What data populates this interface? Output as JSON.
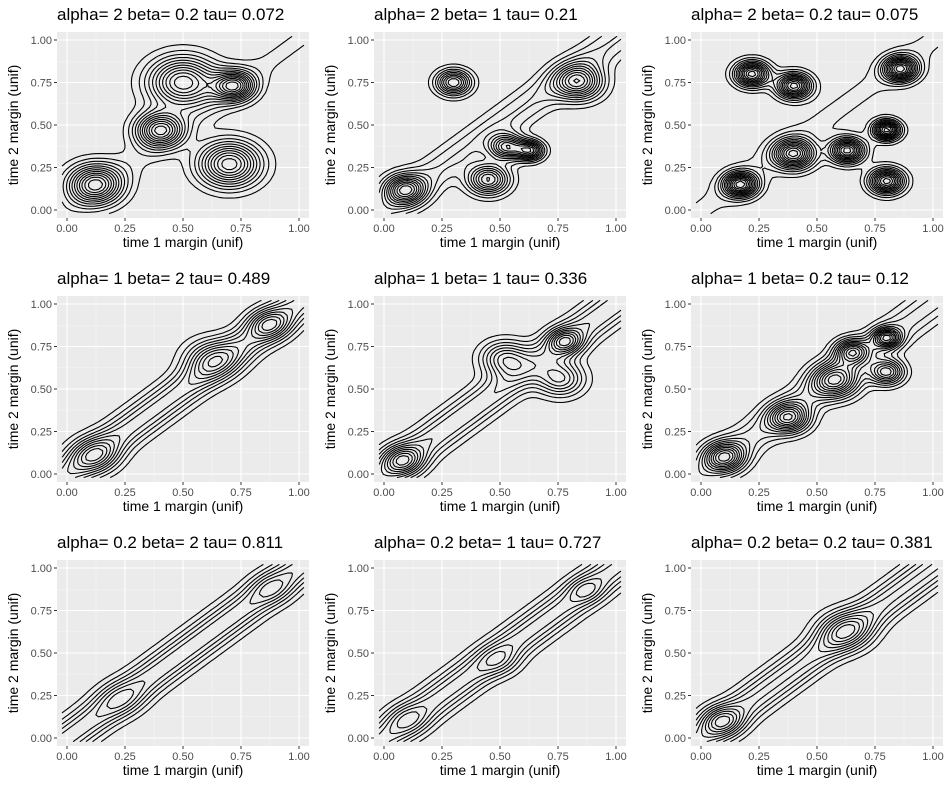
{
  "chart_data": [
    {
      "type": "contour",
      "title": "alpha= 2  beta= 0.2  tau= 0.072",
      "xlabel": "time 1 margin (unif)",
      "ylabel": "time 2 margin (unif)",
      "xlim": [
        0,
        1
      ],
      "ylim": [
        0,
        1
      ],
      "x_ticks": [
        "0.00",
        "0.25",
        "0.50",
        "0.75",
        "1.00"
      ],
      "y_ticks": [
        "0.00",
        "0.25",
        "0.50",
        "0.75",
        "1.00"
      ],
      "border_levels": 10,
      "ridge": 0.1,
      "peaks": [
        {
          "x": 0.12,
          "y": 0.15,
          "w": 0.08
        },
        {
          "x": 0.4,
          "y": 0.47,
          "w": 0.07
        },
        {
          "x": 0.7,
          "y": 0.27,
          "w": 0.09
        },
        {
          "x": 0.72,
          "y": 0.73,
          "w": 0.06
        },
        {
          "x": 0.5,
          "y": 0.75,
          "w": 0.1
        }
      ]
    },
    {
      "type": "contour",
      "title": "alpha= 2  beta= 1  tau= 0.21",
      "xlabel": "time 1 margin (unif)",
      "ylabel": "time 2 margin (unif)",
      "xlim": [
        0,
        1
      ],
      "ylim": [
        0,
        1
      ],
      "x_ticks": [
        "0.00",
        "0.25",
        "0.50",
        "0.75",
        "1.00"
      ],
      "y_ticks": [
        "0.00",
        "0.25",
        "0.50",
        "0.75",
        "1.00"
      ],
      "border_levels": 9,
      "ridge": 0.3,
      "peaks": [
        {
          "x": 0.09,
          "y": 0.12,
          "w": 0.06
        },
        {
          "x": 0.45,
          "y": 0.18,
          "w": 0.06
        },
        {
          "x": 0.53,
          "y": 0.37,
          "w": 0.05
        },
        {
          "x": 0.84,
          "y": 0.75,
          "w": 0.07
        },
        {
          "x": 0.3,
          "y": 0.75,
          "w": 0.05
        },
        {
          "x": 0.63,
          "y": 0.35,
          "w": 0.04
        }
      ]
    },
    {
      "type": "contour",
      "title": "alpha= 2  beta= 0.2  tau= 0.075",
      "xlabel": "time 1 margin (unif)",
      "ylabel": "time 2 margin (unif)",
      "xlim": [
        0,
        1
      ],
      "ylim": [
        0,
        1
      ],
      "x_ticks": [
        "0.00",
        "0.25",
        "0.50",
        "0.75",
        "1.00"
      ],
      "y_ticks": [
        "0.00",
        "0.25",
        "0.50",
        "0.75",
        "1.00"
      ],
      "border_levels": 10,
      "ridge": 0.1,
      "peaks": [
        {
          "x": 0.17,
          "y": 0.15,
          "w": 0.05
        },
        {
          "x": 0.4,
          "y": 0.33,
          "w": 0.06
        },
        {
          "x": 0.4,
          "y": 0.73,
          "w": 0.05
        },
        {
          "x": 0.63,
          "y": 0.35,
          "w": 0.05
        },
        {
          "x": 0.86,
          "y": 0.83,
          "w": 0.05
        },
        {
          "x": 0.8,
          "y": 0.47,
          "w": 0.04
        },
        {
          "x": 0.8,
          "y": 0.17,
          "w": 0.05
        },
        {
          "x": 0.22,
          "y": 0.8,
          "w": 0.05
        }
      ]
    },
    {
      "type": "contour",
      "title": "alpha= 1  beta= 2  tau= 0.489",
      "xlabel": "time 1 margin (unif)",
      "ylabel": "time 2 margin (unif)",
      "xlim": [
        0,
        1
      ],
      "ylim": [
        0,
        1
      ],
      "x_ticks": [
        "0.00",
        "0.25",
        "0.50",
        "0.75",
        "1.00"
      ],
      "y_ticks": [
        "0.00",
        "0.25",
        "0.50",
        "0.75",
        "1.00"
      ],
      "border_levels": 7,
      "ridge": 1.0,
      "peaks": [
        {
          "x": 0.12,
          "y": 0.11,
          "w": 0.07
        },
        {
          "x": 0.62,
          "y": 0.68,
          "w": 0.08
        },
        {
          "x": 0.87,
          "y": 0.88,
          "w": 0.06
        }
      ]
    },
    {
      "type": "contour",
      "title": "alpha= 1  beta= 1  tau= 0.336",
      "xlabel": "time 1 margin (unif)",
      "ylabel": "time 2 margin (unif)",
      "xlim": [
        0,
        1
      ],
      "ylim": [
        0,
        1
      ],
      "x_ticks": [
        "0.00",
        "0.25",
        "0.50",
        "0.75",
        "1.00"
      ],
      "y_ticks": [
        "0.00",
        "0.25",
        "0.50",
        "0.75",
        "1.00"
      ],
      "border_levels": 8,
      "ridge": 0.7,
      "peaks": [
        {
          "x": 0.08,
          "y": 0.08,
          "w": 0.06
        },
        {
          "x": 0.52,
          "y": 0.68,
          "w": 0.07
        },
        {
          "x": 0.76,
          "y": 0.56,
          "w": 0.07
        },
        {
          "x": 0.78,
          "y": 0.78,
          "w": 0.05
        }
      ]
    },
    {
      "type": "contour",
      "title": "alpha= 1  beta= 0.2  tau= 0.12",
      "xlabel": "time 1 margin (unif)",
      "ylabel": "time 2 margin (unif)",
      "xlim": [
        0,
        1
      ],
      "ylim": [
        0,
        1
      ],
      "x_ticks": [
        "0.00",
        "0.25",
        "0.50",
        "0.75",
        "1.00"
      ],
      "y_ticks": [
        "0.00",
        "0.25",
        "0.50",
        "0.75",
        "1.00"
      ],
      "border_levels": 9,
      "ridge": 0.35,
      "peaks": [
        {
          "x": 0.1,
          "y": 0.1,
          "w": 0.06
        },
        {
          "x": 0.38,
          "y": 0.33,
          "w": 0.06
        },
        {
          "x": 0.58,
          "y": 0.55,
          "w": 0.07
        },
        {
          "x": 0.65,
          "y": 0.72,
          "w": 0.05
        },
        {
          "x": 0.8,
          "y": 0.8,
          "w": 0.04
        },
        {
          "x": 0.8,
          "y": 0.6,
          "w": 0.05
        }
      ]
    },
    {
      "type": "contour",
      "title": "alpha= 0.2  beta= 2  tau= 0.811",
      "xlabel": "time 1 margin (unif)",
      "ylabel": "time 2 margin (unif)",
      "xlim": [
        0,
        1
      ],
      "ylim": [
        0,
        1
      ],
      "x_ticks": [
        "0.00",
        "0.25",
        "0.50",
        "0.75",
        "1.00"
      ],
      "y_ticks": [
        "0.00",
        "0.25",
        "0.50",
        "0.75",
        "1.00"
      ],
      "border_levels": 4,
      "ridge": 2.6,
      "peaks": [
        {
          "x": 0.23,
          "y": 0.23,
          "w": 0.07
        },
        {
          "x": 0.88,
          "y": 0.88,
          "w": 0.06
        }
      ]
    },
    {
      "type": "contour",
      "title": "alpha= 0.2  beta= 1  tau= 0.727",
      "xlabel": "time 1 margin (unif)",
      "ylabel": "time 2 margin (unif)",
      "xlim": [
        0,
        1
      ],
      "ylim": [
        0,
        1
      ],
      "x_ticks": [
        "0.00",
        "0.25",
        "0.50",
        "0.75",
        "1.00"
      ],
      "y_ticks": [
        "0.00",
        "0.25",
        "0.50",
        "0.75",
        "1.00"
      ],
      "border_levels": 4,
      "ridge": 2.2,
      "peaks": [
        {
          "x": 0.1,
          "y": 0.11,
          "w": 0.06
        },
        {
          "x": 0.87,
          "y": 0.87,
          "w": 0.05
        },
        {
          "x": 0.5,
          "y": 0.45,
          "w": 0.06
        }
      ]
    },
    {
      "type": "contour",
      "title": "alpha= 0.2  beta= 0.2  tau= 0.381",
      "xlabel": "time 1 margin (unif)",
      "ylabel": "time 2 margin (unif)",
      "xlim": [
        0,
        1
      ],
      "ylim": [
        0,
        1
      ],
      "x_ticks": [
        "0.00",
        "0.25",
        "0.50",
        "0.75",
        "1.00"
      ],
      "y_ticks": [
        "0.00",
        "0.25",
        "0.50",
        "0.75",
        "1.00"
      ],
      "border_levels": 7,
      "ridge": 0.9,
      "peaks": [
        {
          "x": 0.09,
          "y": 0.1,
          "w": 0.06
        },
        {
          "x": 0.62,
          "y": 0.63,
          "w": 0.08
        }
      ]
    }
  ],
  "style": {
    "panel_bg": "#ebebeb",
    "grid_major": "#ffffff",
    "line": "#000000",
    "tick_text": "#4d4d4d"
  }
}
